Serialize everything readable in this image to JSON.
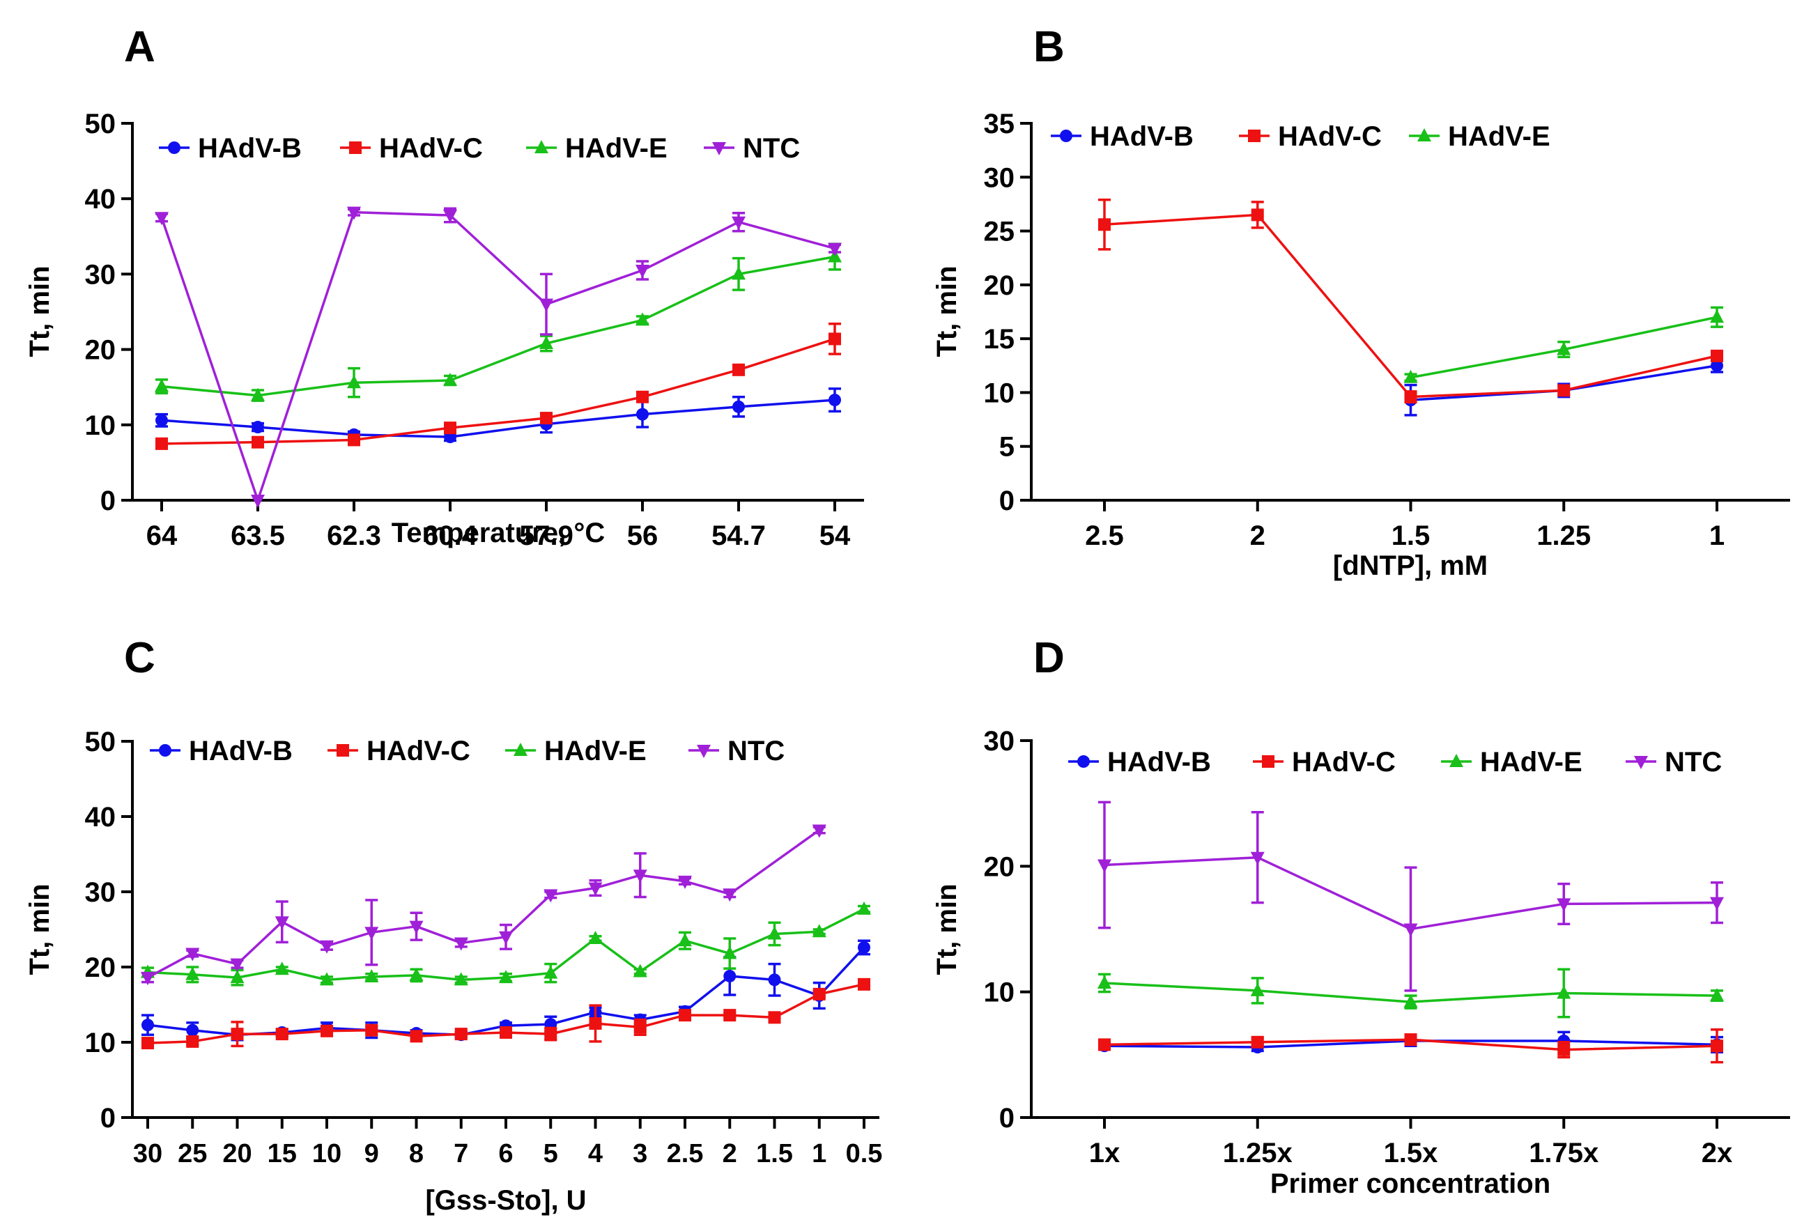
{
  "colors": {
    "HAdV-B": "#1010ee",
    "HAdV-C": "#ee1111",
    "HAdV-E": "#18c018",
    "NTC": "#a020d8"
  },
  "chart_data": [
    {
      "panel": "A",
      "type": "line",
      "xlabel": "Temperature, °C",
      "ylabel": "Tt, min",
      "ylim": [
        0,
        50
      ],
      "yticks": [
        "0",
        "10",
        "20",
        "30",
        "40",
        "50"
      ],
      "categories": [
        "64",
        "63.5",
        "62.3",
        "60.4",
        "57.9",
        "56",
        "54.7",
        "54"
      ],
      "legend": [
        "HAdV-B",
        "HAdV-C",
        "HAdV-E",
        "NTC"
      ],
      "series": [
        {
          "name": "HAdV-B",
          "marker": "circle",
          "values": [
            10.6,
            9.7,
            8.7,
            8.4,
            10.1,
            11.4,
            12.4,
            13.3
          ],
          "errors": [
            0.8,
            0.5,
            0.4,
            0.5,
            1.1,
            1.7,
            1.3,
            1.5
          ]
        },
        {
          "name": "HAdV-C",
          "marker": "square",
          "values": [
            7.5,
            7.7,
            8.0,
            9.6,
            10.9,
            13.7,
            17.3,
            21.4
          ],
          "errors": [
            0.3,
            0.3,
            0.3,
            0.4,
            0.4,
            0.4,
            0.4,
            2.0
          ]
        },
        {
          "name": "HAdV-E",
          "marker": "triangle",
          "values": [
            15.1,
            13.9,
            15.6,
            15.9,
            20.8,
            23.9,
            30.0,
            32.3
          ],
          "errors": [
            0.9,
            0.7,
            1.9,
            0.6,
            1.0,
            0.5,
            2.1,
            1.7
          ]
        },
        {
          "name": "NTC",
          "marker": "triangle-down",
          "values": [
            37.5,
            0,
            38.2,
            37.8,
            26.0,
            30.5,
            36.9,
            33.4
          ],
          "errors": [
            0.5,
            0,
            0.4,
            0.9,
            4.0,
            1.2,
            1.2,
            0.5
          ]
        }
      ]
    },
    {
      "panel": "B",
      "type": "line",
      "xlabel": "[dNTP], mM",
      "ylabel": "Tt, min",
      "ylim": [
        0,
        35
      ],
      "yticks": [
        "0",
        "5",
        "10",
        "15",
        "20",
        "25",
        "30",
        "35"
      ],
      "categories": [
        "2.5",
        "2",
        "1.5",
        "1.25",
        "1"
      ],
      "legend": [
        "HAdV-B",
        "HAdV-C",
        "HAdV-E"
      ],
      "series": [
        {
          "name": "HAdV-B",
          "marker": "circle",
          "values": [
            null,
            null,
            9.3,
            10.2,
            12.5
          ],
          "errors": [
            0,
            0,
            1.4,
            0.6,
            0.6
          ]
        },
        {
          "name": "HAdV-C",
          "marker": "square",
          "values": [
            25.6,
            26.5,
            9.6,
            10.2,
            13.4
          ],
          "errors": [
            2.3,
            1.2,
            0.5,
            0.4,
            0.3
          ]
        },
        {
          "name": "HAdV-E",
          "marker": "triangle",
          "values": [
            null,
            null,
            11.4,
            14.0,
            17.0
          ],
          "errors": [
            0,
            0,
            0.3,
            0.7,
            0.9
          ]
        }
      ]
    },
    {
      "panel": "C",
      "type": "line",
      "xlabel": "[Gss-Sto], U",
      "ylabel": "Tt, min",
      "ylim": [
        0,
        50
      ],
      "yticks": [
        "0",
        "10",
        "20",
        "30",
        "40",
        "50"
      ],
      "categories": [
        "30",
        "25",
        "20",
        "15",
        "10",
        "9",
        "8",
        "7",
        "6",
        "5",
        "4",
        "3",
        "2.5",
        "2",
        "1.5",
        "1",
        "0.5"
      ],
      "legend": [
        "HAdV-B",
        "HAdV-C",
        "HAdV-E",
        "NTC"
      ],
      "series": [
        {
          "name": "HAdV-B",
          "marker": "circle",
          "values": [
            12.3,
            11.6,
            11.0,
            11.3,
            11.9,
            11.6,
            11.2,
            11.0,
            12.2,
            12.4,
            14.0,
            13.0,
            14.1,
            18.8,
            18.3,
            16.2,
            22.6
          ],
          "errors": [
            1.3,
            1.0,
            0.7,
            0.4,
            0.7,
            1.0,
            0.4,
            0.4,
            0.4,
            1.0,
            0.6,
            0.6,
            0.6,
            2.5,
            2.1,
            1.7,
            0.9
          ]
        },
        {
          "name": "HAdV-C",
          "marker": "square",
          "values": [
            9.9,
            10.1,
            11.1,
            11.1,
            11.5,
            11.6,
            10.8,
            11.1,
            11.3,
            11.1,
            12.5,
            12.0,
            13.6,
            13.6,
            13.3,
            16.4,
            17.7
          ],
          "errors": [
            0.3,
            0.4,
            1.6,
            0.3,
            0.4,
            0.5,
            0.4,
            0.3,
            0.6,
            0.8,
            2.4,
            1.0,
            0.3,
            0.3,
            0.6,
            0.4,
            0.6
          ]
        },
        {
          "name": "HAdV-E",
          "marker": "triangle",
          "values": [
            19.3,
            19.0,
            18.6,
            19.7,
            18.3,
            18.7,
            18.9,
            18.3,
            18.6,
            19.2,
            23.8,
            19.4,
            23.5,
            21.8,
            24.4,
            24.7,
            27.7
          ],
          "errors": [
            0.6,
            1.0,
            1.0,
            0.3,
            0.4,
            0.4,
            0.8,
            0.4,
            0.5,
            1.2,
            0.3,
            0.3,
            1.1,
            2.0,
            1.5,
            0.3,
            0.4
          ]
        },
        {
          "name": "NTC",
          "marker": "triangle-down",
          "values": [
            18.6,
            21.8,
            20.4,
            26.0,
            22.8,
            24.6,
            25.4,
            23.2,
            24.0,
            29.6,
            30.5,
            32.2,
            31.4,
            29.7,
            null,
            38.2,
            null
          ],
          "errors": [
            0.6,
            0.4,
            0.5,
            2.7,
            0.5,
            4.3,
            1.8,
            0.5,
            1.6,
            0.4,
            1.0,
            2.9,
            0.4,
            0.4,
            0,
            0.4,
            0
          ]
        }
      ]
    },
    {
      "panel": "D",
      "type": "line",
      "xlabel": "Primer concentration",
      "ylabel": "Tt, min",
      "ylim": [
        0,
        30
      ],
      "yticks": [
        "0",
        "10",
        "20",
        "30"
      ],
      "categories": [
        "1x",
        "1.25x",
        "1.5x",
        "1.75x",
        "2x"
      ],
      "legend": [
        "HAdV-B",
        "HAdV-C",
        "HAdV-E",
        "NTC"
      ],
      "series": [
        {
          "name": "HAdV-B",
          "marker": "circle",
          "values": [
            5.7,
            5.6,
            6.1,
            6.1,
            5.8
          ],
          "errors": [
            0.3,
            0.3,
            0.4,
            0.7,
            0.6
          ]
        },
        {
          "name": "HAdV-C",
          "marker": "square",
          "values": [
            5.8,
            6.0,
            6.2,
            5.4,
            5.7
          ],
          "errors": [
            0.3,
            0.3,
            0.4,
            0.6,
            1.3
          ]
        },
        {
          "name": "HAdV-E",
          "marker": "triangle",
          "values": [
            10.7,
            10.1,
            9.2,
            9.9,
            9.7
          ],
          "errors": [
            0.7,
            1.0,
            0.5,
            1.9,
            0.4
          ]
        },
        {
          "name": "NTC",
          "marker": "triangle-down",
          "values": [
            20.1,
            20.7,
            15.0,
            17.0,
            17.1
          ],
          "errors": [
            5.0,
            3.6,
            4.9,
            1.6,
            1.6
          ]
        }
      ]
    }
  ]
}
